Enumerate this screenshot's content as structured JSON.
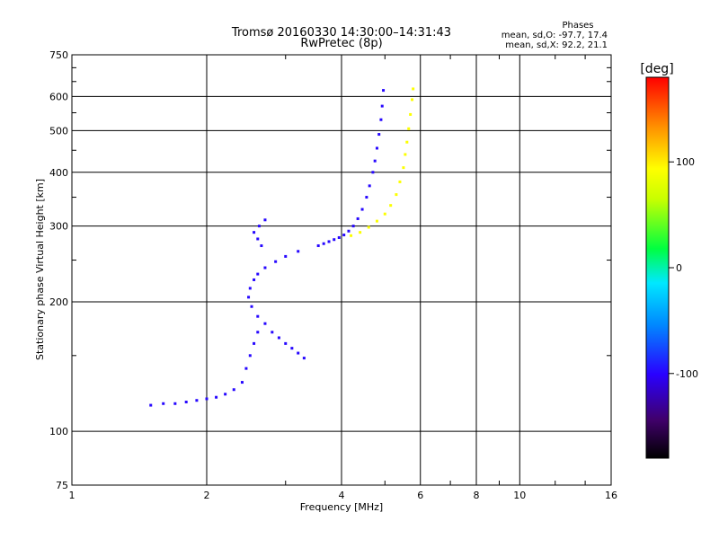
{
  "chart_data": {
    "type": "scatter",
    "title": "Tromsø 20160330 14:30:00–14:31:43",
    "subtitle": "RwPretec (8p)",
    "xlabel": "Frequency [MHz]",
    "ylabel": "Stationary phase Virtual Height [km]",
    "x_scale": "log",
    "y_scale": "log",
    "xlim": [
      1,
      16
    ],
    "ylim": [
      75,
      750
    ],
    "x_ticks": [
      1,
      2,
      4,
      6,
      8,
      10,
      16
    ],
    "x_tick_labels": [
      "1",
      "2",
      "4",
      "6",
      "8",
      "10",
      "16"
    ],
    "y_ticks": [
      75,
      100,
      200,
      300,
      400,
      500,
      600,
      750
    ],
    "y_tick_labels": [
      "75",
      "100",
      "200",
      "300",
      "400",
      "500",
      "600",
      "750"
    ],
    "grid": true,
    "info": {
      "heading": "Phases",
      "line_o": "mean, sd,O: -97.7, 17.4",
      "line_x": "mean, sd,X: 92.2, 21.1"
    },
    "colorbar": {
      "label": "[deg]",
      "range": [
        -180,
        180
      ],
      "ticks": [
        100,
        0,
        -100
      ],
      "tick_labels": [
        "100",
        "0",
        "-100"
      ]
    },
    "series": [
      {
        "name": "O",
        "phase": -98,
        "points": [
          [
            3.55,
            270
          ],
          [
            3.65,
            273
          ],
          [
            3.75,
            276
          ],
          [
            3.85,
            279
          ],
          [
            3.95,
            282
          ],
          [
            4.05,
            286
          ],
          [
            4.15,
            292
          ],
          [
            4.25,
            300
          ],
          [
            4.35,
            312
          ],
          [
            4.45,
            328
          ],
          [
            4.55,
            350
          ],
          [
            4.62,
            372
          ],
          [
            4.7,
            400
          ],
          [
            4.75,
            425
          ],
          [
            4.8,
            455
          ],
          [
            4.85,
            490
          ],
          [
            4.9,
            530
          ],
          [
            4.93,
            570
          ],
          [
            4.96,
            620
          ],
          [
            3.2,
            262
          ],
          [
            3.0,
            255
          ],
          [
            2.85,
            248
          ],
          [
            2.7,
            240
          ],
          [
            2.6,
            232
          ],
          [
            2.55,
            225
          ],
          [
            2.5,
            215
          ],
          [
            2.48,
            205
          ],
          [
            2.52,
            195
          ],
          [
            2.6,
            185
          ],
          [
            2.7,
            178
          ],
          [
            2.8,
            170
          ],
          [
            2.9,
            165
          ],
          [
            3.0,
            160
          ],
          [
            3.1,
            156
          ],
          [
            3.2,
            152
          ],
          [
            3.3,
            148
          ],
          [
            2.6,
            170
          ],
          [
            2.55,
            160
          ],
          [
            2.5,
            150
          ],
          [
            2.45,
            140
          ],
          [
            2.4,
            130
          ],
          [
            2.3,
            125
          ],
          [
            2.2,
            122
          ],
          [
            2.1,
            120
          ],
          [
            2.0,
            119
          ],
          [
            1.9,
            118
          ],
          [
            1.8,
            117
          ],
          [
            1.7,
            116
          ],
          [
            1.6,
            116
          ],
          [
            1.5,
            115
          ],
          [
            2.55,
            290
          ],
          [
            2.6,
            280
          ],
          [
            2.65,
            270
          ],
          [
            2.62,
            300
          ],
          [
            2.7,
            310
          ]
        ]
      },
      {
        "name": "X",
        "phase": 92,
        "points": [
          [
            4.2,
            285
          ],
          [
            4.4,
            290
          ],
          [
            4.6,
            298
          ],
          [
            4.8,
            308
          ],
          [
            5.0,
            320
          ],
          [
            5.15,
            335
          ],
          [
            5.3,
            355
          ],
          [
            5.4,
            380
          ],
          [
            5.5,
            410
          ],
          [
            5.55,
            440
          ],
          [
            5.6,
            470
          ],
          [
            5.65,
            505
          ],
          [
            5.7,
            545
          ],
          [
            5.75,
            590
          ],
          [
            5.78,
            625
          ]
        ]
      }
    ]
  }
}
